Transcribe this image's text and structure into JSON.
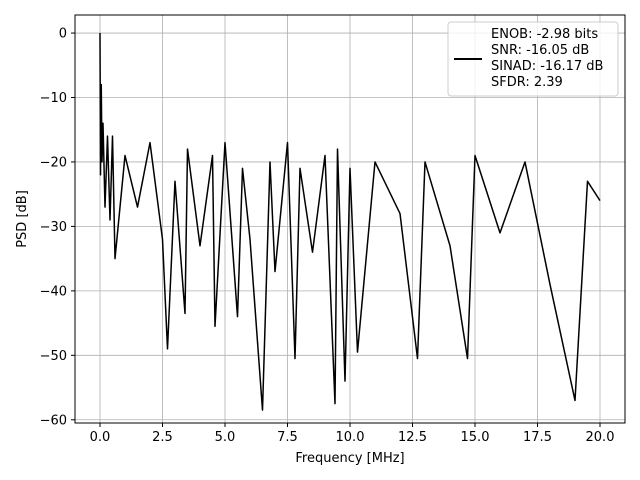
{
  "chart_data": {
    "type": "line",
    "xlabel": "Frequency [MHz]",
    "ylabel": "PSD [dB]",
    "xlim": [
      -1.0,
      21.0
    ],
    "ylim": [
      -60.5,
      2.8
    ],
    "xticks": [
      0.0,
      2.5,
      5.0,
      7.5,
      10.0,
      12.5,
      15.0,
      17.5,
      20.0
    ],
    "xtick_labels": [
      "0.0",
      "2.5",
      "5.0",
      "7.5",
      "10.0",
      "12.5",
      "15.0",
      "17.5",
      "20.0"
    ],
    "yticks": [
      0,
      -10,
      -20,
      -30,
      -40,
      -50,
      -60
    ],
    "ytick_labels": [
      "0",
      "−10",
      "−20",
      "−30",
      "−40",
      "−50",
      "−60"
    ],
    "grid": true,
    "legend_position": "top-right",
    "legend_lines": [
      "ENOB: -2.98 bits",
      "SNR: -16.05 dB",
      "SINAD: -16.17 dB",
      "SFDR: 2.39"
    ],
    "series": [
      {
        "color": "#000000",
        "x": [
          0.0,
          0.02,
          0.05,
          0.08,
          0.12,
          0.2,
          0.3,
          0.4,
          0.5,
          0.6,
          1.0,
          1.5,
          2.0,
          2.5,
          2.7,
          3.0,
          3.4,
          3.5,
          4.0,
          4.5,
          4.6,
          5.0,
          5.5,
          5.7,
          6.0,
          6.5,
          6.8,
          7.0,
          7.5,
          7.8,
          8.0,
          8.5,
          9.0,
          9.4,
          9.5,
          9.8,
          10.0,
          10.3,
          11.0,
          12.0,
          12.7,
          13.0,
          14.0,
          14.7,
          15.0,
          16.0,
          17.0,
          18.0,
          19.0,
          19.5,
          20.0
        ],
        "y": [
          0,
          -22,
          -8,
          -20,
          -14,
          -27,
          -16,
          -29,
          -16,
          -35,
          -19,
          -27,
          -17,
          -32,
          -49,
          -23,
          -43.5,
          -18,
          -33,
          -19,
          -45.5,
          -17,
          -44,
          -21,
          -32,
          -58.5,
          -20,
          -37,
          -17,
          -50.5,
          -21,
          -34,
          -19,
          -57.5,
          -18,
          -54,
          -21,
          -49.5,
          -20,
          -28,
          -50.5,
          -20,
          -33,
          -50.5,
          -19,
          -31,
          -20,
          -39,
          -57,
          -23,
          -26
        ]
      }
    ]
  }
}
